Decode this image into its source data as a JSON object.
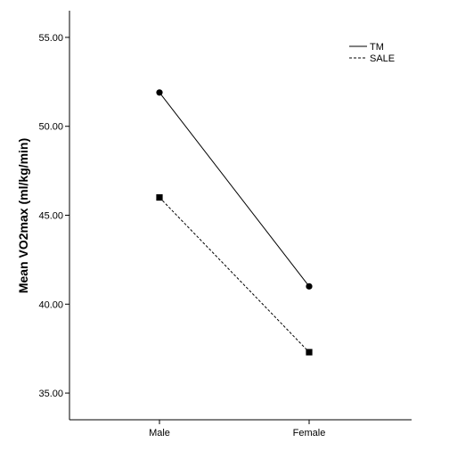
{
  "chart_data": {
    "type": "line",
    "title": "",
    "xlabel": "",
    "ylabel": "Mean VO2max (ml/kg/min)",
    "categories": [
      "Male",
      "Female"
    ],
    "ylim": [
      33.5,
      56.5
    ],
    "yticks": [
      "35.00",
      "40.00",
      "45.00",
      "50.00",
      "55.00"
    ],
    "grid": false,
    "legend_position": "top-right",
    "series": [
      {
        "name": "TM",
        "values": [
          51.9,
          41.0
        ],
        "line_style": "solid",
        "marker": "circle",
        "color": "#000000"
      },
      {
        "name": "SALE",
        "values": [
          46.0,
          37.3
        ],
        "line_style": "dashed",
        "marker": "square",
        "color": "#000000"
      }
    ]
  }
}
